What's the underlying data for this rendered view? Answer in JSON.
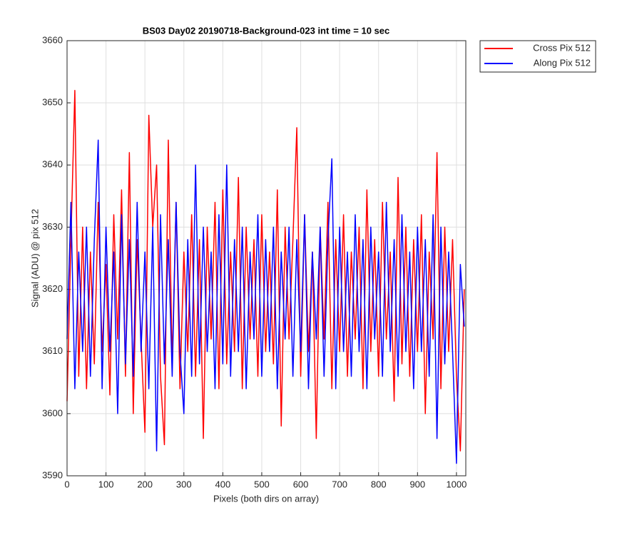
{
  "chart_data": {
    "type": "line",
    "title": "BS03 Day02 20190718-Background-023 int time = 10 sec",
    "x_label": "Pixels (both dirs on array)",
    "y_label": "Signal (ADU) @ pix 512",
    "x": [
      0,
      10,
      20,
      30,
      40,
      50,
      60,
      70,
      80,
      90,
      100,
      110,
      120,
      130,
      140,
      150,
      160,
      170,
      180,
      190,
      200,
      210,
      220,
      230,
      240,
      250,
      260,
      270,
      280,
      290,
      300,
      310,
      320,
      330,
      340,
      350,
      360,
      370,
      380,
      390,
      400,
      410,
      420,
      430,
      440,
      450,
      460,
      470,
      480,
      490,
      500,
      510,
      520,
      530,
      540,
      550,
      560,
      570,
      580,
      590,
      600,
      610,
      620,
      630,
      640,
      650,
      660,
      670,
      680,
      690,
      700,
      710,
      720,
      730,
      740,
      750,
      760,
      770,
      780,
      790,
      800,
      810,
      820,
      830,
      840,
      850,
      860,
      870,
      880,
      890,
      900,
      910,
      920,
      930,
      940,
      950,
      960,
      970,
      980,
      990,
      1000,
      1010,
      1020
    ],
    "series": [
      {
        "name": "Cross Pix 512",
        "color": "#ff0000",
        "values": [
          3602,
          3628,
          3652,
          3606,
          3630,
          3604,
          3626,
          3608,
          3634,
          3610,
          3624,
          3603,
          3632,
          3612,
          3636,
          3606,
          3642,
          3600,
          3628,
          3612,
          3597,
          3648,
          3630,
          3640,
          3606,
          3595,
          3644,
          3608,
          3634,
          3604,
          3626,
          3610,
          3632,
          3606,
          3628,
          3596,
          3630,
          3612,
          3634,
          3604,
          3636,
          3608,
          3626,
          3610,
          3638,
          3604,
          3630,
          3612,
          3628,
          3606,
          3632,
          3610,
          3626,
          3608,
          3636,
          3598,
          3630,
          3612,
          3628,
          3646,
          3606,
          3632,
          3610,
          3626,
          3596,
          3630,
          3612,
          3634,
          3604,
          3628,
          3610,
          3632,
          3606,
          3626,
          3612,
          3630,
          3604,
          3636,
          3610,
          3628,
          3606,
          3634,
          3612,
          3626,
          3602,
          3638,
          3608,
          3630,
          3606,
          3628,
          3610,
          3632,
          3600,
          3626,
          3612,
          3642,
          3604,
          3630,
          3610,
          3628,
          3606,
          3594,
          3620
        ]
      },
      {
        "name": "Along Pix 512",
        "color": "#0000ff",
        "values": [
          3612,
          3634,
          3604,
          3626,
          3610,
          3630,
          3606,
          3628,
          3644,
          3604,
          3630,
          3610,
          3626,
          3600,
          3632,
          3608,
          3628,
          3606,
          3634,
          3610,
          3626,
          3604,
          3630,
          3594,
          3632,
          3608,
          3628,
          3606,
          3634,
          3610,
          3600,
          3628,
          3606,
          3640,
          3608,
          3630,
          3610,
          3626,
          3604,
          3632,
          3608,
          3640,
          3606,
          3628,
          3610,
          3630,
          3604,
          3626,
          3612,
          3632,
          3606,
          3628,
          3610,
          3630,
          3604,
          3626,
          3612,
          3630,
          3606,
          3628,
          3610,
          3632,
          3604,
          3626,
          3612,
          3630,
          3606,
          3628,
          3641,
          3604,
          3630,
          3610,
          3626,
          3606,
          3632,
          3610,
          3628,
          3604,
          3630,
          3612,
          3626,
          3606,
          3634,
          3610,
          3628,
          3606,
          3632,
          3610,
          3626,
          3604,
          3630,
          3610,
          3628,
          3606,
          3632,
          3596,
          3630,
          3608,
          3626,
          3610,
          3592,
          3624,
          3614
        ]
      }
    ],
    "xlim": [
      0,
      1024
    ],
    "ylim": [
      3590,
      3660
    ],
    "xticks": [
      0,
      100,
      200,
      300,
      400,
      500,
      600,
      700,
      800,
      900,
      1000
    ],
    "yticks": [
      3590,
      3600,
      3610,
      3620,
      3630,
      3640,
      3650,
      3660
    ],
    "grid": true,
    "legend": "northeastoutside"
  }
}
